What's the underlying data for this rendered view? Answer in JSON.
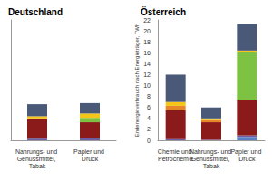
{
  "chart_data": [
    {
      "type": "bar",
      "title": "Deutschland",
      "stacked": true,
      "grid": false,
      "tick_labels": "x",
      "categories": [
        "Nahrungs- und Genussmittel, Tabak",
        "Papier und Druck"
      ],
      "ylim": [
        0,
        22
      ],
      "series": [
        {
          "color": "#5b7fc7",
          "values": [
            0,
            0
          ]
        },
        {
          "color": "#6b5fa8",
          "values": [
            0.3,
            0.4
          ]
        },
        {
          "color": "#8b1a1a",
          "values": [
            3.5,
            2.9
          ]
        },
        {
          "color": "#e8862a",
          "values": [
            0.2,
            0
          ]
        },
        {
          "color": "#7dc242",
          "values": [
            0,
            0.8
          ]
        },
        {
          "color": "#f5c518",
          "values": [
            0.4,
            0.8
          ]
        },
        {
          "color": "#4a5978",
          "values": [
            2.2,
            1.9
          ]
        }
      ]
    },
    {
      "type": "bar",
      "title": "Österreich",
      "stacked": true,
      "grid": false,
      "ylabel": "Endenergieverbrauch nach Energieträger, TWh",
      "categories": [
        "Chemie und Petrochemie",
        "Nahrungs- und Genussmittel, Tabak",
        "Papier und Druck"
      ],
      "ylim": [
        0,
        22
      ],
      "yticks": [
        0,
        2,
        4,
        6,
        8,
        10,
        12,
        14,
        16,
        18,
        20,
        22
      ],
      "series": [
        {
          "color": "#5b7fc7",
          "values": [
            0,
            0,
            0.6
          ]
        },
        {
          "color": "#6b5fa8",
          "values": [
            0.2,
            0.1,
            0.3
          ]
        },
        {
          "color": "#8b1a1a",
          "values": [
            5.3,
            3.2,
            6.4
          ]
        },
        {
          "color": "#e8862a",
          "values": [
            0.8,
            0.4,
            0
          ]
        },
        {
          "color": "#7dc242",
          "values": [
            0,
            0,
            8.8
          ]
        },
        {
          "color": "#f5c518",
          "values": [
            0.7,
            0.3,
            0.3
          ]
        },
        {
          "color": "#4a5978",
          "values": [
            5.0,
            2.0,
            4.9
          ]
        }
      ]
    }
  ]
}
